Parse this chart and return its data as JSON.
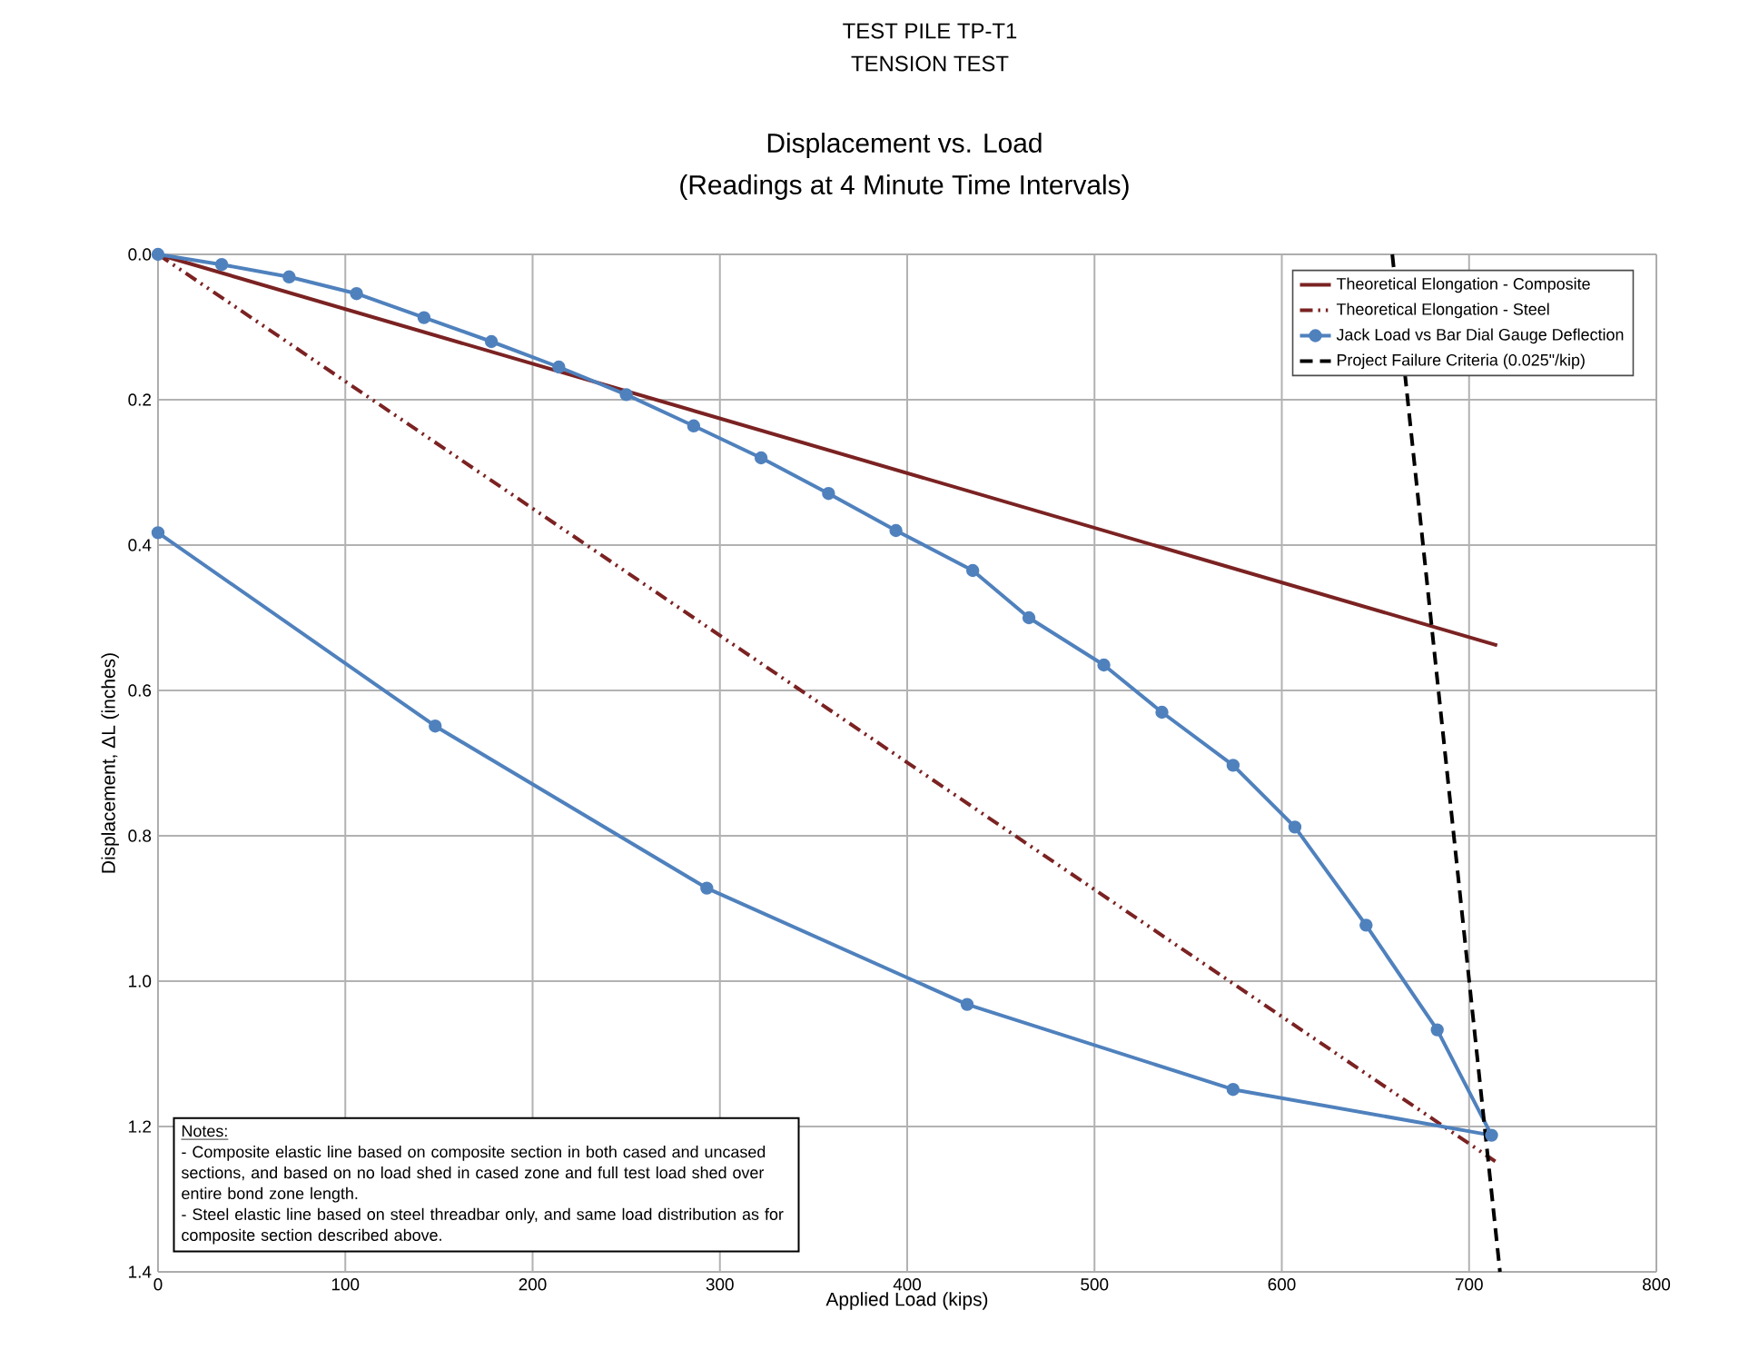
{
  "chart_data": {
    "type": "line",
    "title": "Displacement vs. Load",
    "subtitle": "(Readings at 4 Minute Time Intervals)",
    "xlabel": "Applied Load (kips)",
    "ylabel": "Displacement, ΔL (inches)",
    "xlim": [
      0,
      800
    ],
    "xticks": [
      0,
      100,
      200,
      300,
      400,
      500,
      600,
      700,
      800
    ],
    "ylim": [
      1.4,
      0
    ],
    "yticks": [
      {
        "value": 0,
        "label": "0.0"
      },
      {
        "value": 0.2,
        "label": "0.2"
      },
      {
        "value": 0.4,
        "label": "0.4"
      },
      {
        "value": 0.6,
        "label": "0.6"
      },
      {
        "value": 0.8,
        "label": "0.8"
      },
      {
        "value": 1.0,
        "label": "1.0"
      },
      {
        "value": 1.2,
        "label": "1.2"
      },
      {
        "value": 1.4,
        "label": "1.4"
      }
    ],
    "grid": true,
    "legend": "top right",
    "series": [
      {
        "name": "Theoretical Elongation - Composite",
        "color": "#7b2222",
        "line_style": "solid",
        "marker": "none",
        "x": [
          0,
          715
        ],
        "values": [
          0,
          0.538
        ]
      },
      {
        "name": "Theoretical Elongation - Steel",
        "color": "#7b2222",
        "line_style": "dashdotdotted",
        "marker": "none",
        "x": [
          0,
          714
        ],
        "values": [
          0,
          1.248
        ]
      },
      {
        "name": "Jack Load vs Bar Dial Gauge Deflection",
        "color": "#4f81bd",
        "line_style": "solid",
        "marker": "circle",
        "x": [
          0,
          34,
          70,
          106,
          142,
          178,
          214,
          250,
          286,
          322,
          358,
          394,
          435,
          465,
          505,
          536,
          574,
          607,
          645,
          683,
          712,
          574,
          432,
          293,
          148,
          0
        ],
        "values": [
          0,
          0.014,
          0.031,
          0.054,
          0.087,
          0.12,
          0.155,
          0.193,
          0.236,
          0.28,
          0.329,
          0.38,
          0.435,
          0.5,
          0.565,
          0.63,
          0.703,
          0.788,
          0.923,
          1.067,
          1.212,
          1.149,
          1.032,
          0.872,
          0.649,
          0.383
        ]
      },
      {
        "name": "Project Failure Criteria (0.025\"/kip)",
        "color": "#000000",
        "line_style": "dashed",
        "marker": "none",
        "x": [
          659,
          716.5
        ],
        "values": [
          0,
          1.4
        ]
      }
    ],
    "annotations": [
      "TEST PILE TP-T1",
      "TENSION TEST",
      "Notes:",
      " - Composite elastic line based on composite section in both cased and uncased sections, and based on no load shed in cased zone and full test load shed over entire bond zone length.",
      " - Steel elastic line based on steel threadbar only, and same load distribution as for composite section described above."
    ]
  }
}
